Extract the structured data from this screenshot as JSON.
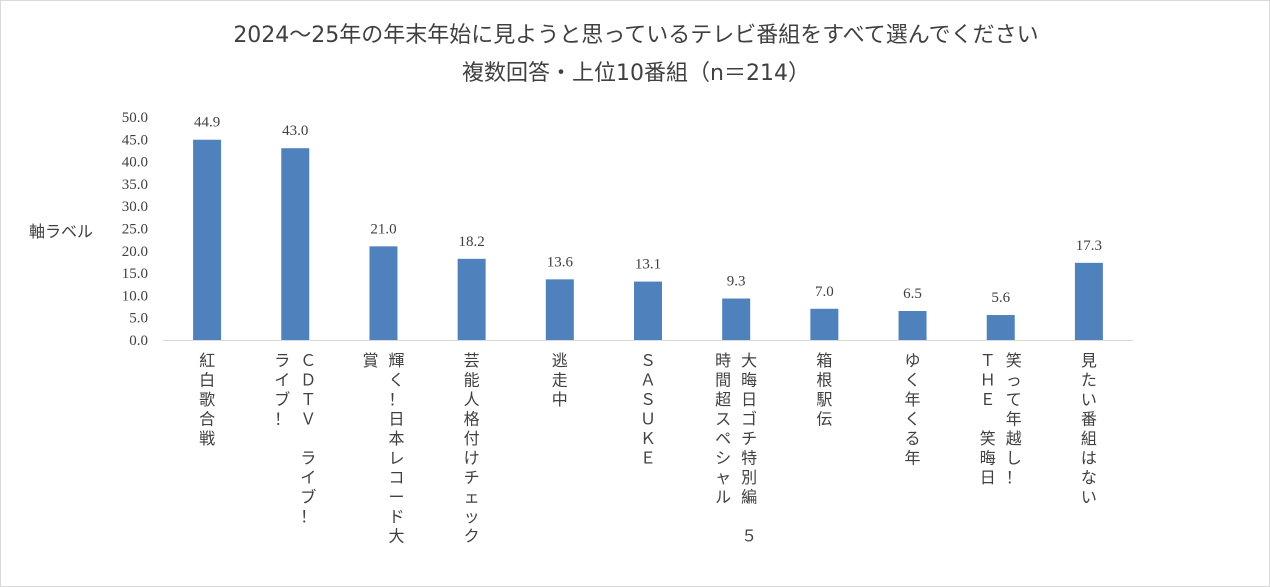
{
  "chart_data": {
    "type": "bar",
    "title": "2024～25年の年末年始に見ようと思っているテレビ番組をすべて選んでください",
    "subtitle": "複数回答・上位10番組（n＝214）",
    "ylabel": "軸ラベル",
    "xlabel": "",
    "ylim": [
      0,
      50
    ],
    "yticks": [
      "0.0",
      "5.0",
      "10.0",
      "15.0",
      "20.0",
      "25.0",
      "30.0",
      "35.0",
      "40.0",
      "45.0",
      "50.0"
    ],
    "grid": false,
    "legend": "none",
    "bar_color": "#4f81bd",
    "categories": [
      "紅白歌合戦",
      "ＣＤＴＶ　ライブ！ライブ！",
      "輝く！日本レコード大賞",
      "芸能人格付けチェック",
      "逃走中",
      "ＳＡＳＵＫＥ",
      "大晦日ゴチ特別編５時間超スペシャル",
      "箱根駅伝",
      "ゆく年くる年",
      "笑って年越し！ＴＨＥ笑晦日",
      "見たい番組はない"
    ],
    "category_lines": [
      [
        "紅白歌合戦"
      ],
      [
        "ＣＤＴＶ　ライブ！",
        "ライブ！"
      ],
      [
        "輝く！日本レコード大",
        "賞"
      ],
      [
        "芸能人格付けチェック"
      ],
      [
        "逃走中"
      ],
      [
        "ＳＡＳＵＫＥ"
      ],
      [
        "大晦日ゴチ特別編　５",
        "時間超スペシャル"
      ],
      [
        "箱根駅伝"
      ],
      [
        "ゆく年くる年"
      ],
      [
        "笑って年越し！",
        "ＴＨＥ　笑晦日"
      ],
      [
        "見たい番組はない"
      ]
    ],
    "values": [
      44.9,
      43.0,
      21.0,
      18.2,
      13.6,
      13.1,
      9.3,
      7.0,
      6.5,
      5.6,
      17.3
    ],
    "value_labels": [
      "44.9",
      "43.0",
      "21.0",
      "18.2",
      "13.6",
      "13.1",
      "9.3",
      "7.0",
      "6.5",
      "5.6",
      "17.3"
    ]
  }
}
